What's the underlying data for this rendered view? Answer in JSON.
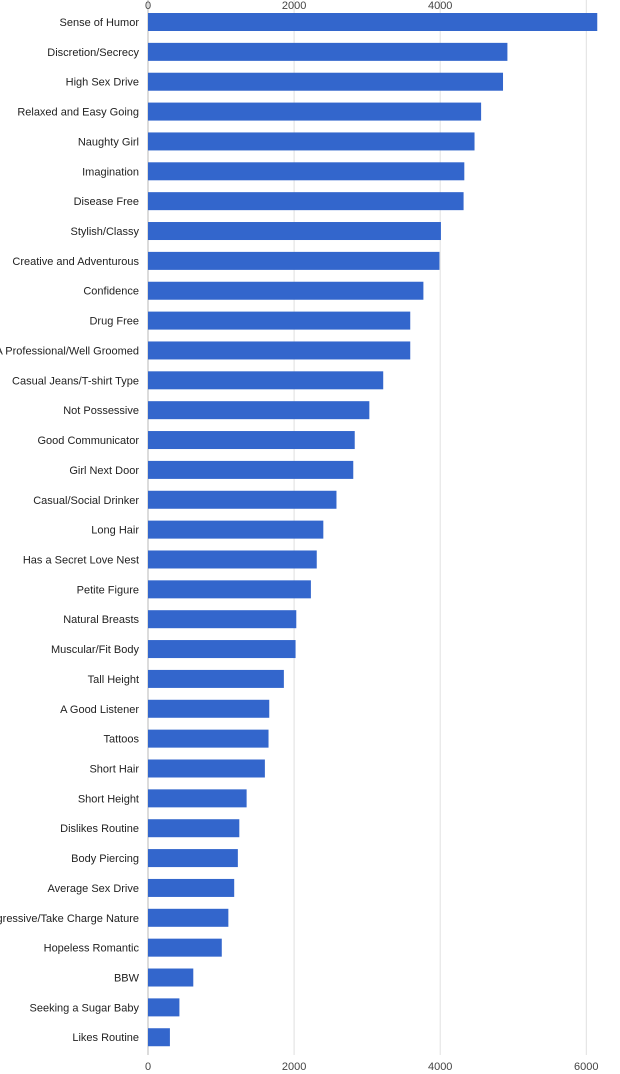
{
  "chart_data": {
    "type": "bar",
    "orientation": "horizontal",
    "categories": [
      "Sense of Humor",
      "Discretion/Secrecy",
      "High Sex Drive",
      "Relaxed and Easy Going",
      "Naughty Girl",
      "Imagination",
      "Disease Free",
      "Stylish/Classy",
      "Creative and Adventurous",
      "Confidence",
      "Drug Free",
      "A Professional/Well Groomed",
      "Casual Jeans/T-shirt Type",
      "Not Possessive",
      "Good Communicator",
      "Girl Next Door",
      "Casual/Social Drinker",
      "Long Hair",
      "Has a Secret Love Nest",
      "Petite Figure",
      "Natural Breasts",
      "Muscular/Fit Body",
      "Tall Height",
      "A Good Listener",
      "Tattoos",
      "Short Hair",
      "Short Height",
      "Dislikes Routine",
      "Body Piercing",
      "Average Sex Drive",
      "Aggressive/Take Charge Nature",
      "Hopeless Romantic",
      "BBW",
      "Seeking a Sugar Baby",
      "Likes Routine"
    ],
    "values": [
      6150,
      4920,
      4860,
      4560,
      4470,
      4330,
      4320,
      4010,
      3990,
      3770,
      3590,
      3590,
      3220,
      3030,
      2830,
      2810,
      2580,
      2400,
      2310,
      2230,
      2030,
      2020,
      1860,
      1660,
      1650,
      1600,
      1350,
      1250,
      1230,
      1180,
      1100,
      1010,
      620,
      430,
      300
    ],
    "title": "",
    "xlabel": "",
    "ylabel": "",
    "xlim": [
      0,
      6200
    ],
    "ticks": [
      0,
      2000,
      4000,
      6000
    ],
    "tick_labels": [
      "0",
      "2000",
      "4000",
      "6000"
    ],
    "top_tick_labels": [
      "0",
      "2000",
      "4000"
    ],
    "grid": true,
    "legend": "none",
    "bar_color": "#3366cc",
    "grid_color": "#e0e0e0"
  }
}
